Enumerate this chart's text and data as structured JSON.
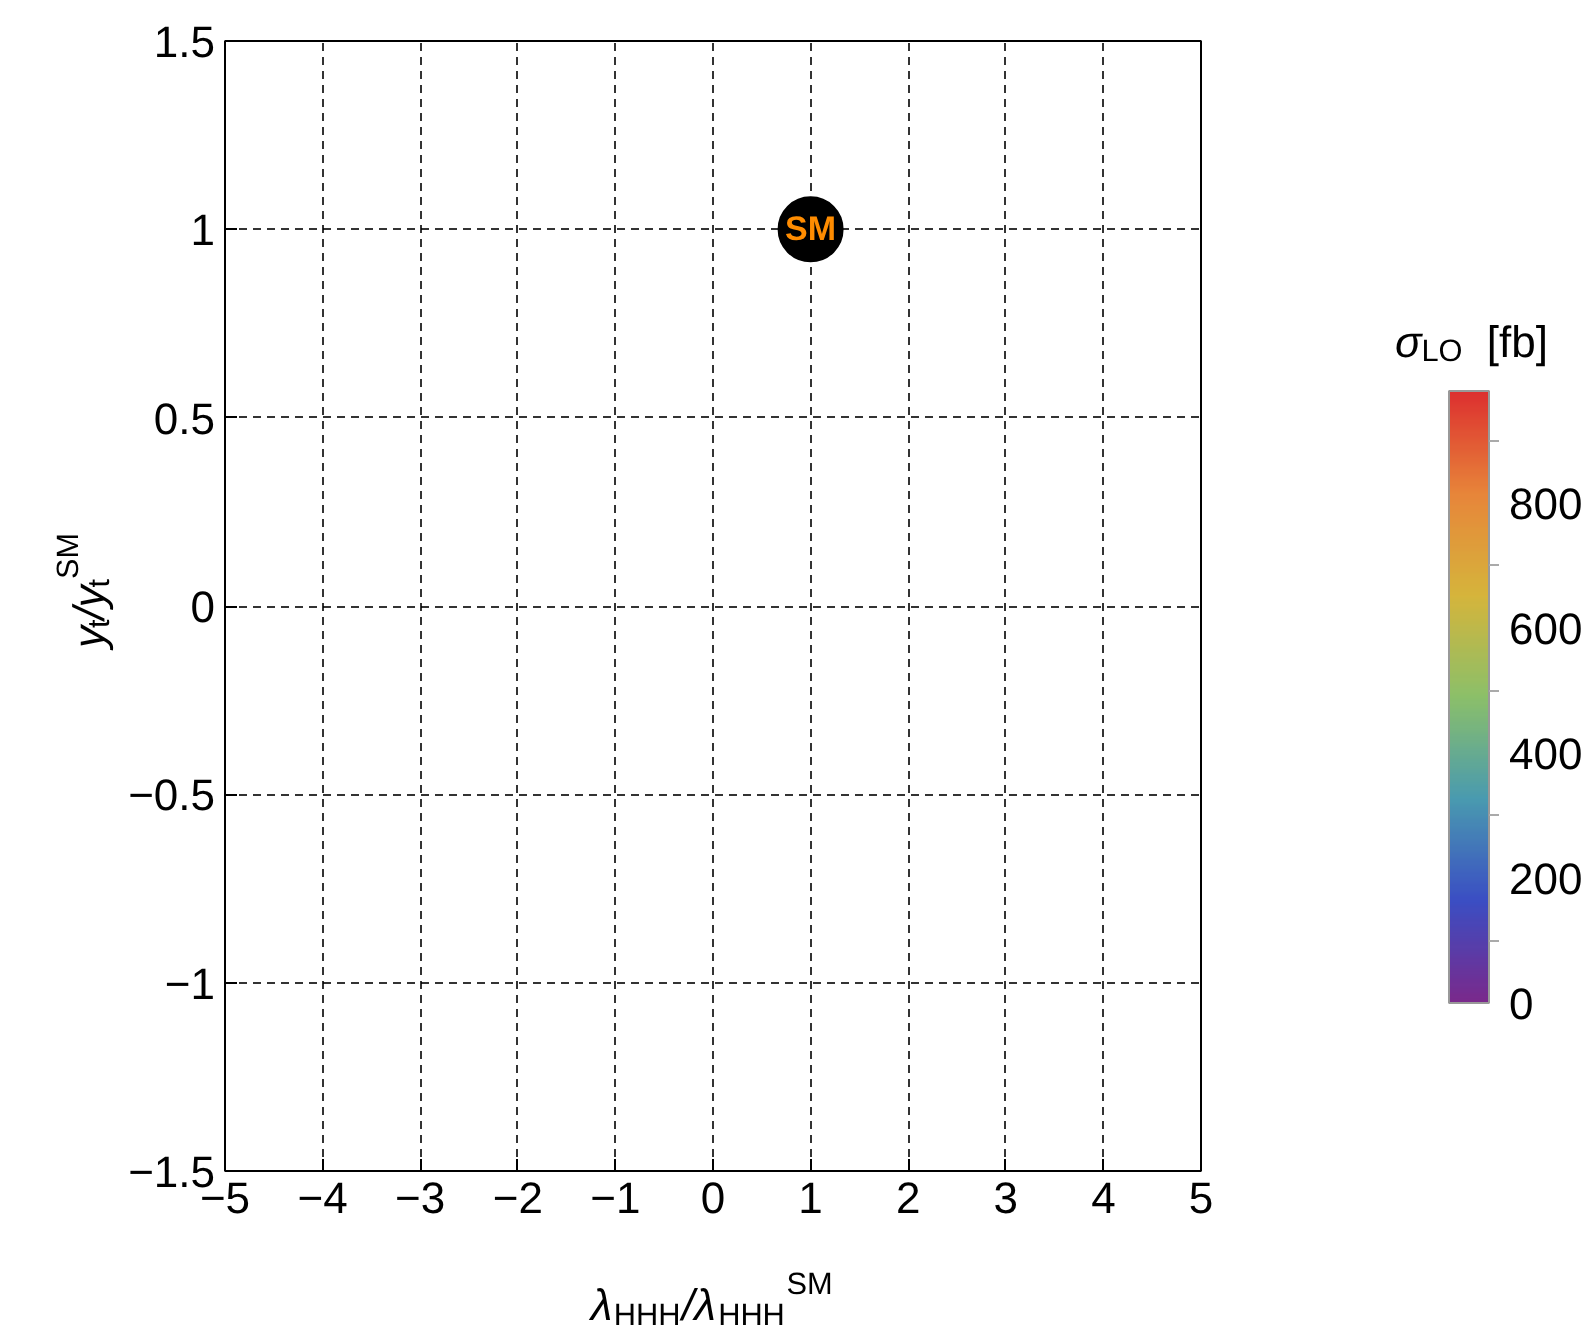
{
  "chart_data": {
    "type": "scatter",
    "xlabel": "λ$_{HHH}$/λ$_{HHH}$$^{SM}$",
    "ylabel": "y$_{t}$/y$_{t}$$^{SM}$",
    "clabel": "σ$_{LO}$ [fb]",
    "series": [
      {
        "name": "SM",
        "color": "#000000",
        "x": [
          1
        ],
        "values": [
          1
        ]
      }
    ],
    "xlim": [
      -5,
      5
    ],
    "xticks": [
      {
        "value": -5,
        "label": "−5"
      },
      {
        "value": -4,
        "label": "−4"
      },
      {
        "value": -3,
        "label": "−3"
      },
      {
        "value": -2,
        "label": "−2"
      },
      {
        "value": -1,
        "label": "−1"
      },
      0,
      1,
      2,
      3,
      4,
      5
    ],
    "ylim": [
      -1.5,
      1.5
    ],
    "yticks": [
      {
        "value": -1.5,
        "label": "−1.5"
      },
      {
        "value": -1,
        "label": "−1"
      },
      {
        "value": -0.5,
        "label": "−0.5"
      },
      0,
      0.5,
      1,
      1.5
    ],
    "clim": [
      0,
      980
    ],
    "cticks": [
      0,
      {
        "value": 100,
        "label": null
      },
      200,
      {
        "value": 300,
        "label": null
      },
      400,
      {
        "value": 500,
        "label": null
      },
      600,
      {
        "value": 700,
        "label": null
      },
      800,
      {
        "value": 900,
        "label": null
      }
    ],
    "grid": true,
    "marker": "circle",
    "line_style": "dashed"
  }
}
